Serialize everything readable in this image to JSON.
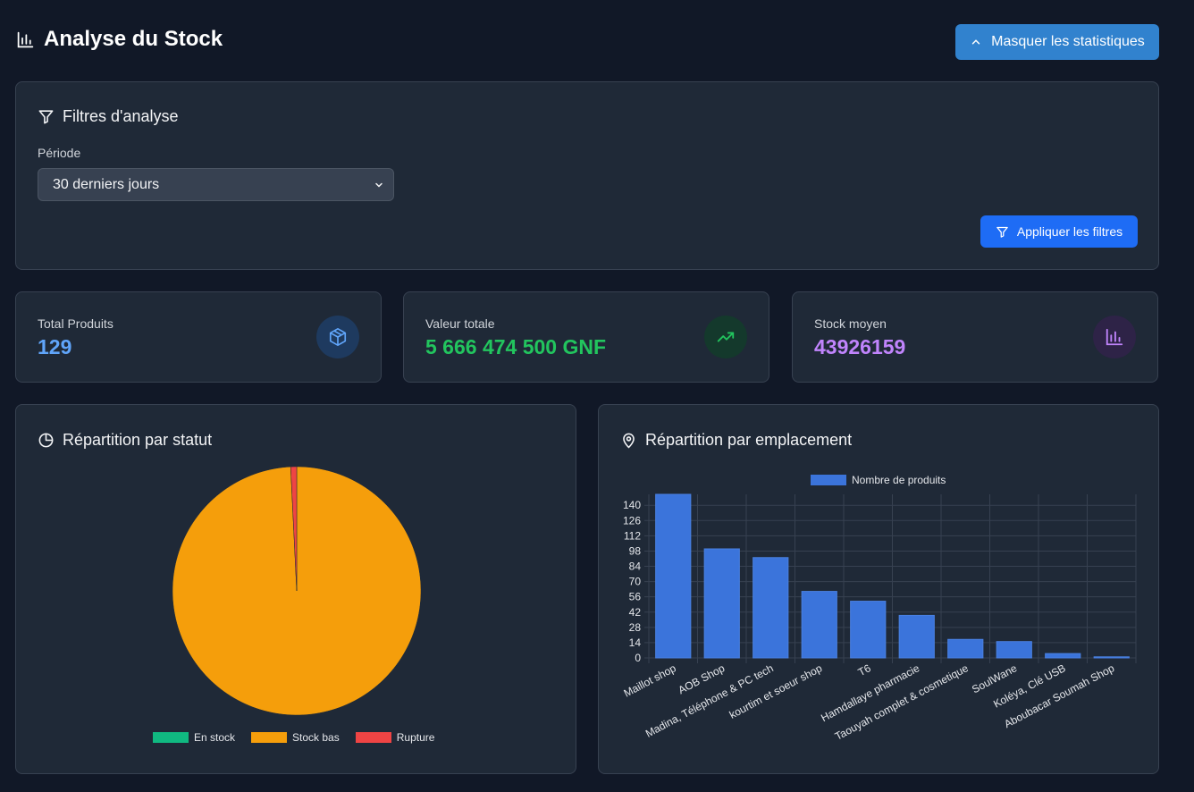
{
  "header": {
    "title": "Analyse du Stock",
    "toggle_label": "Masquer les statistiques"
  },
  "filters": {
    "title": "Filtres d'analyse",
    "period_label": "Période",
    "period_value": "30 derniers jours",
    "apply_label": "Appliquer les filtres"
  },
  "stats": [
    {
      "label": "Total Produits",
      "value": "129",
      "color": "#60a5fa",
      "icon": "box-icon"
    },
    {
      "label": "Valeur totale",
      "value": "5 666 474 500 GNF",
      "color": "#22c55e",
      "icon": "trending-up-icon"
    },
    {
      "label": "Stock moyen",
      "value": "43926159",
      "color": "#c084fc",
      "icon": "bar-chart-icon"
    }
  ],
  "status_panel": {
    "title": "Répartition par statut",
    "legend": [
      {
        "label": "En stock",
        "color": "#10b981"
      },
      {
        "label": "Stock bas",
        "color": "#f59e0b"
      },
      {
        "label": "Rupture",
        "color": "#ef4444"
      }
    ]
  },
  "location_panel": {
    "title": "Répartition par emplacement",
    "legend_label": "Nombre de produits"
  },
  "chart_data": [
    {
      "type": "pie",
      "categories": [
        "En stock",
        "Stock bas",
        "Rupture"
      ],
      "values": [
        0,
        128,
        1
      ],
      "colors": [
        "#10b981",
        "#f59e0b",
        "#ef4444"
      ],
      "legend_position": "bottom"
    },
    {
      "type": "bar",
      "categories": [
        "Maillot shop",
        "AOB Shop",
        "Madina, Téléphone & PC tech",
        "kourtim et soeur shop",
        "T6",
        "Hamdallaye pharmacie",
        "Taouyah complet & cosmetique",
        "SoulWane",
        "Koléya, Clé USB",
        "Aboubacar Soumah Shop"
      ],
      "series": [
        {
          "name": "Nombre de produits",
          "values": [
            150,
            100,
            92,
            61,
            52,
            39,
            17,
            15,
            4,
            1
          ]
        }
      ],
      "ylim": [
        0,
        150
      ],
      "yticks": [
        0,
        14,
        28,
        42,
        56,
        70,
        84,
        98,
        112,
        126,
        140
      ],
      "grid": true,
      "legend_position": "top",
      "color": "#3b74db"
    }
  ]
}
